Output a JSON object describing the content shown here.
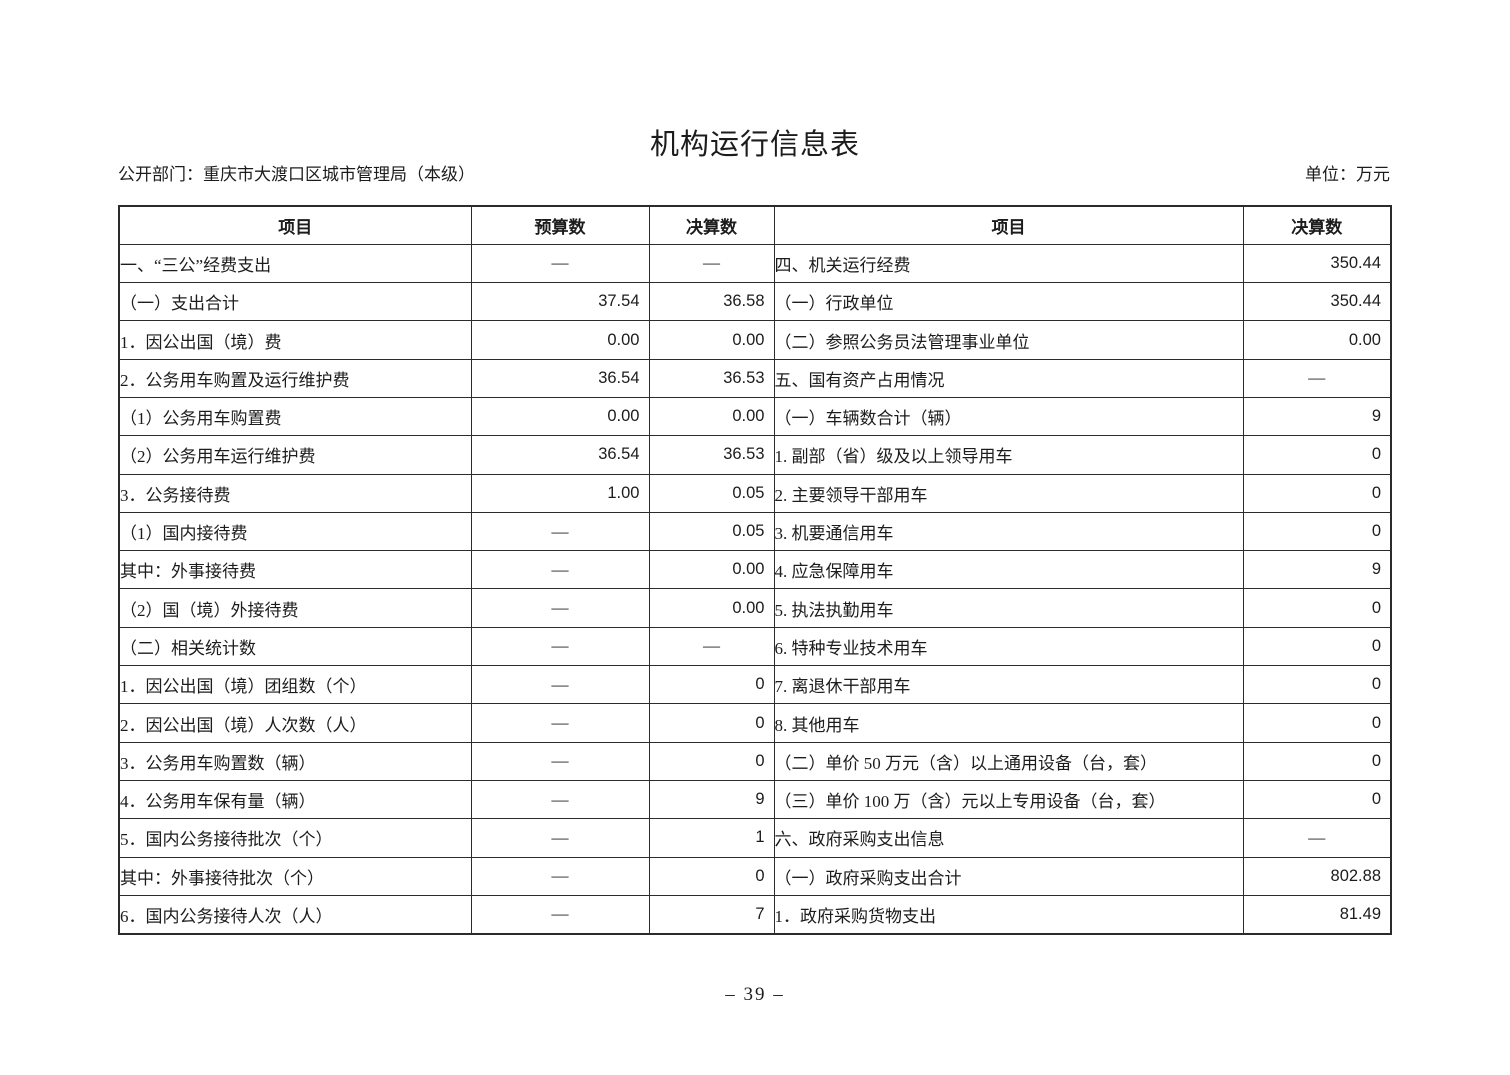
{
  "page": {
    "title": "机构运行信息表",
    "department": "公开部门：重庆市大渡口区城市管理局（本级）",
    "unit": "单位：万元",
    "page_number": "– 39 –"
  },
  "table": {
    "headers": [
      "项目",
      "预算数",
      "决算数",
      "项目",
      "决算数"
    ],
    "left_rows": [
      {
        "label": "一、“三公”经费支出",
        "indent": 0,
        "budget": "—",
        "final": "—"
      },
      {
        "label": "（一）支出合计",
        "indent": 1,
        "budget": "37.54",
        "final": "36.58"
      },
      {
        "label": "1．因公出国（境）费",
        "indent": 2,
        "budget": "0.00",
        "final": "0.00"
      },
      {
        "label": "2．公务用车购置及运行维护费",
        "indent": 2,
        "budget": "36.54",
        "final": "36.53"
      },
      {
        "label": "（1）公务用车购置费",
        "indent": 3,
        "budget": "0.00",
        "final": "0.00"
      },
      {
        "label": "（2）公务用车运行维护费",
        "indent": 3,
        "budget": "36.54",
        "final": "36.53"
      },
      {
        "label": "3．公务接待费",
        "indent": 2,
        "budget": "1.00",
        "final": "0.05"
      },
      {
        "label": "（1）国内接待费",
        "indent": 3,
        "budget": "—",
        "final": "0.05"
      },
      {
        "label": "其中：外事接待费",
        "indent": 5,
        "budget": "—",
        "final": "0.00"
      },
      {
        "label": "（2）国（境）外接待费",
        "indent": 3,
        "budget": "—",
        "final": "0.00"
      },
      {
        "label": "（二）相关统计数",
        "indent": 1,
        "budget": "—",
        "final": "—"
      },
      {
        "label": "1．因公出国（境）团组数（个）",
        "indent": 2,
        "budget": "—",
        "final": "0"
      },
      {
        "label": "2．因公出国（境）人次数（人）",
        "indent": 2,
        "budget": "—",
        "final": "0"
      },
      {
        "label": "3．公务用车购置数（辆）",
        "indent": 2,
        "budget": "—",
        "final": "0"
      },
      {
        "label": "4．公务用车保有量（辆）",
        "indent": 2,
        "budget": "—",
        "final": "9"
      },
      {
        "label": "5．国内公务接待批次（个）",
        "indent": 2,
        "budget": "—",
        "final": "1"
      },
      {
        "label": "其中：外事接待批次（个）",
        "indent": 4,
        "budget": "—",
        "final": "0"
      },
      {
        "label": "6．国内公务接待人次（人）",
        "indent": 2,
        "budget": "—",
        "final": "7"
      }
    ],
    "right_rows": [
      {
        "label": "四、机关运行经费",
        "indent": 0,
        "final": "350.44"
      },
      {
        "label": "（一）行政单位",
        "indent": 1,
        "final": "350.44"
      },
      {
        "label": "（二）参照公务员法管理事业单位",
        "indent": 1,
        "final": "0.00"
      },
      {
        "label": "五、国有资产占用情况",
        "indent": 0,
        "final": "—"
      },
      {
        "label": "（一）车辆数合计（辆）",
        "indent": 1,
        "final": "9"
      },
      {
        "label": "1. 副部（省）级及以上领导用车",
        "indent": 2,
        "final": "0"
      },
      {
        "label": "2. 主要领导干部用车",
        "indent": 2,
        "final": "0"
      },
      {
        "label": "3. 机要通信用车",
        "indent": 2,
        "final": "0"
      },
      {
        "label": "4. 应急保障用车",
        "indent": 2,
        "final": "9"
      },
      {
        "label": "5. 执法执勤用车",
        "indent": 2,
        "final": "0"
      },
      {
        "label": "6. 特种专业技术用车",
        "indent": 2,
        "final": "0"
      },
      {
        "label": "7. 离退休干部用车",
        "indent": 2,
        "final": "0"
      },
      {
        "label": "8. 其他用车",
        "indent": 2,
        "final": "0"
      },
      {
        "label": "（二）单价 50 万元（含）以上通用设备（台，套）",
        "indent": 1,
        "final": "0"
      },
      {
        "label": "（三）单价 100 万（含）元以上专用设备（台，套）",
        "indent": 1,
        "final": "0"
      },
      {
        "label": "六、政府采购支出信息",
        "indent": 0,
        "final": "—"
      },
      {
        "label": "（一）政府采购支出合计",
        "indent": 1,
        "final": "802.88"
      },
      {
        "label": "1．政府采购货物支出",
        "indent": 3,
        "final": "81.49"
      }
    ]
  }
}
